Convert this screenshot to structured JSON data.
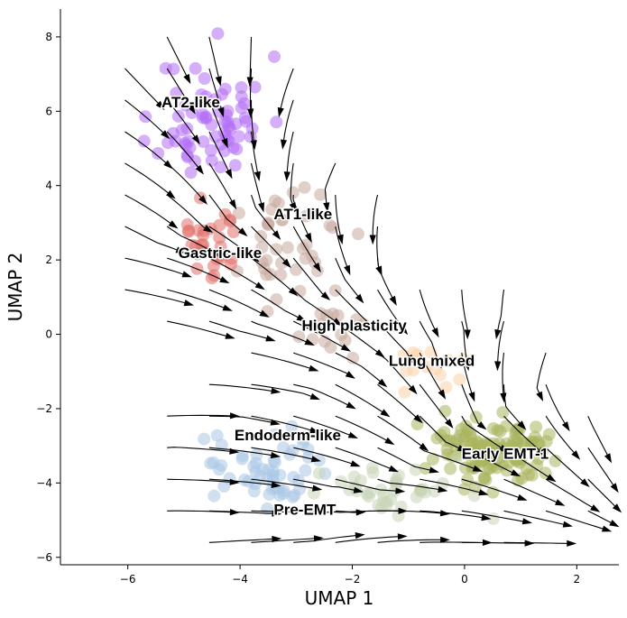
{
  "chart_data": {
    "type": "scatter",
    "title": "",
    "xlabel": "UMAP 1",
    "ylabel": "UMAP 2",
    "xlim": [
      -7.2,
      2.75
    ],
    "ylim": [
      -6.2,
      8.75
    ],
    "xticks": [
      -6,
      -4,
      -2,
      0,
      2
    ],
    "yticks": [
      -6,
      -4,
      -2,
      0,
      2,
      4,
      6,
      8
    ],
    "xtick_labels": [
      "−6",
      "−4",
      "−2",
      "0",
      "2"
    ],
    "ytick_labels": [
      "−6",
      "−4",
      "−2",
      "0",
      "2",
      "4",
      "6",
      "8"
    ],
    "spines": "left-bottom",
    "grid": false,
    "overlay": "velocity streamlines with arrowheads",
    "clusters": [
      {
        "label": "AT2-like",
        "label_pos": [
          -5.4,
          6.1
        ],
        "color": "#b36ef5",
        "center": [
          -4.5,
          5.8
        ],
        "spread": [
          0.8,
          1.4
        ],
        "n": 70,
        "seed": 11
      },
      {
        "label": "AT1-like",
        "label_pos": [
          -3.4,
          3.1
        ],
        "color": "#c9a99f",
        "center": [
          -3.0,
          2.3
        ],
        "spread": [
          0.8,
          1.1
        ],
        "n": 40,
        "seed": 23
      },
      {
        "label": "Gastric-like",
        "label_pos": [
          -5.1,
          2.05
        ],
        "color": "#e2706a",
        "center": [
          -4.6,
          2.5
        ],
        "spread": [
          0.5,
          0.9
        ],
        "n": 30,
        "seed": 31
      },
      {
        "label": "High plasticity",
        "label_pos": [
          -2.9,
          0.1
        ],
        "color": "#c9a99f",
        "center": [
          -2.4,
          0.2
        ],
        "spread": [
          0.6,
          0.6
        ],
        "n": 14,
        "seed": 41
      },
      {
        "label": "Lung mixed",
        "label_pos": [
          -1.35,
          -0.85
        ],
        "color": "#fcd2a8",
        "center": [
          -0.6,
          -0.7
        ],
        "spread": [
          0.6,
          0.6
        ],
        "n": 16,
        "seed": 53
      },
      {
        "label": "Endoderm-like",
        "label_pos": [
          -4.1,
          -2.85
        ],
        "color": "#a9c7e6",
        "center": [
          -3.6,
          -3.6
        ],
        "spread": [
          1.0,
          1.0
        ],
        "n": 55,
        "seed": 61
      },
      {
        "label": "Early EMT-1",
        "label_pos": [
          -0.05,
          -3.35
        ],
        "color": "#a9b45c",
        "center": [
          0.5,
          -3.2
        ],
        "spread": [
          1.0,
          0.8
        ],
        "n": 130,
        "seed": 71
      },
      {
        "label": "Pre-EMT",
        "label_pos": [
          -3.4,
          -4.85
        ],
        "color": "#c9d6b8",
        "center": [
          -1.2,
          -4.2
        ],
        "spread": [
          1.2,
          0.6
        ],
        "n": 40,
        "seed": 83
      }
    ]
  }
}
